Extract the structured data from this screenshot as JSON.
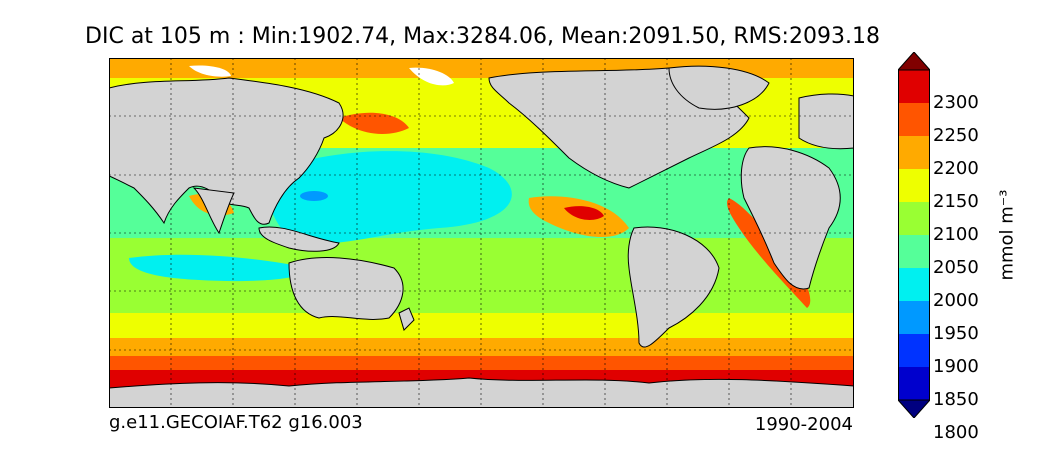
{
  "title": "DIC at 105 m : Min:1902.74, Max:3284.06, Mean:2091.50, RMS:2093.18",
  "credit_left": "g.e11.GECOIAF.T62 g16.003",
  "credit_right": "1990-2004",
  "colorbar": {
    "units": "mmol m⁻³",
    "ticks": [
      "2300",
      "2250",
      "2200",
      "2150",
      "2100",
      "2050",
      "2000",
      "1950",
      "1900",
      "1850",
      "1800"
    ],
    "colors": [
      "#000080",
      "#0000cd",
      "#0033ff",
      "#0099ff",
      "#00f0f0",
      "#55ff99",
      "#99ff33",
      "#eeff00",
      "#ffaa00",
      "#ff5500",
      "#e00000",
      "#800000"
    ],
    "extend": "both"
  }
}
